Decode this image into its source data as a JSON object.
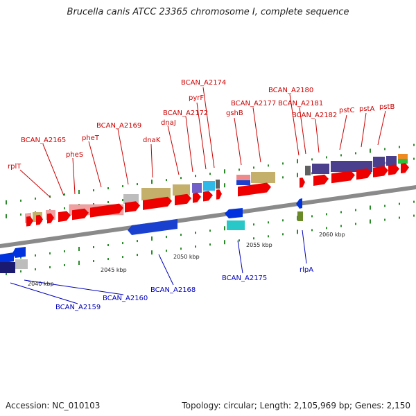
{
  "title": "Brucella canis ATCC 23365 chromosome I, complete sequence",
  "accession_text": "Accession: NC_010103",
  "summary_text": "Topology: circular; Length: 2,105,969 bp; Genes: 2,150",
  "colors": {
    "backbone": "#8a8a8a",
    "forward_gene": "#ee0000",
    "reverse_gene": "#0033dd",
    "label_top": "#cc0000",
    "label_bottom": "#0000bb",
    "tick": "#2a8a2a"
  },
  "scale_labels": [
    "2040 kbp",
    "2045 kbp",
    "2050 kbp",
    "2055 kbp",
    "2060 kbp"
  ],
  "top_labels": [
    "rplT",
    "BCAN_A2165",
    "pheS",
    "pheT",
    "BCAN_A2169",
    "dnaK",
    "dnaJ",
    "BCAN_A2172",
    "pyrF",
    "BCAN_A2174",
    "gshB",
    "BCAN_A2177",
    "BCAN_A2180",
    "BCAN_A2181",
    "BCAN_A2182",
    "pstC",
    "pstA",
    "pstB"
  ],
  "bottom_labels": [
    "BCAN_A2159",
    "BCAN_A2160",
    "BCAN_A2168",
    "BCAN_A2175",
    "rlpA"
  ]
}
